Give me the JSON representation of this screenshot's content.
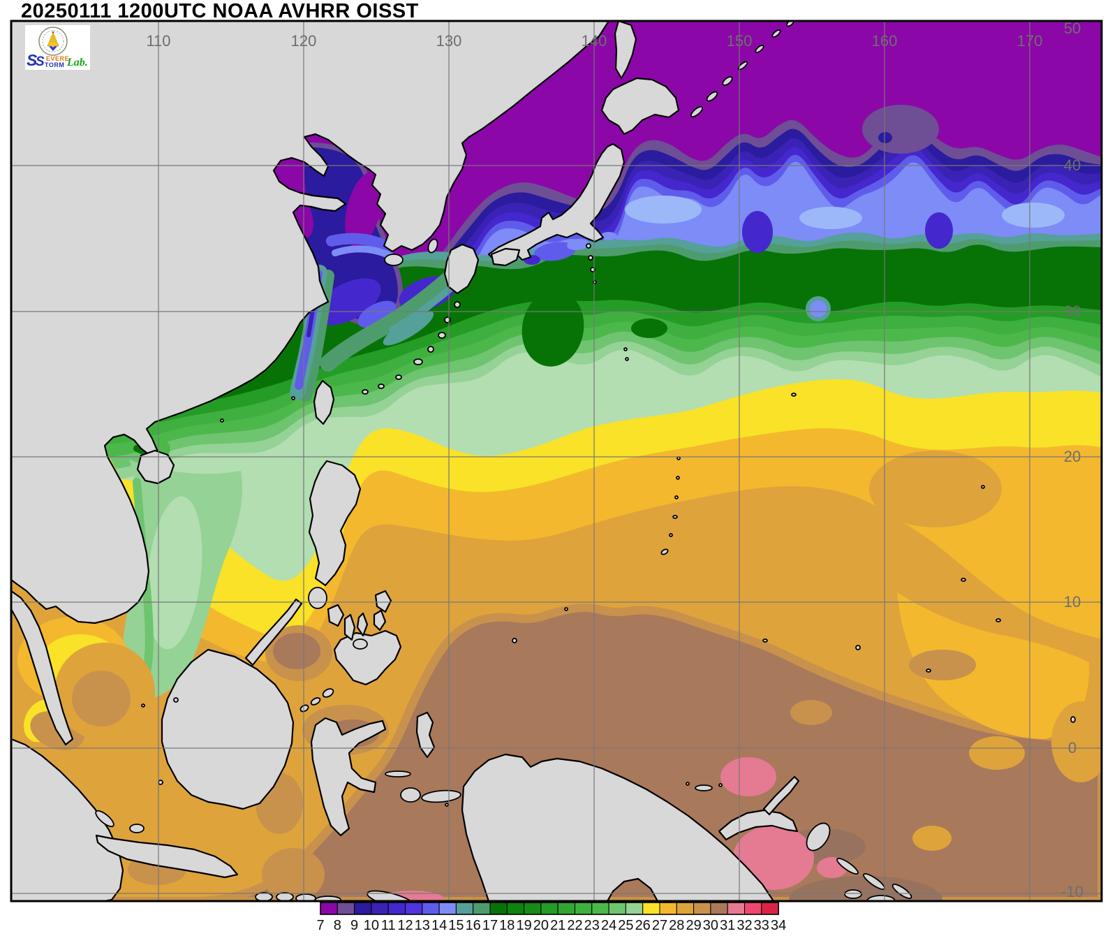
{
  "title": "20250111 1200UTC NOAA AVHRR OISST",
  "logo": {
    "s1": "S",
    "s2": "S",
    "word_top": "EVERE",
    "word_bottom": "TORM",
    "lab": "Lab."
  },
  "map": {
    "lon_ticks": [
      "110",
      "120",
      "130",
      "140",
      "150",
      "160",
      "170"
    ],
    "lat_ticks": [
      "50",
      "40",
      "30",
      "20",
      "10",
      "0",
      "-10"
    ]
  },
  "colorbar": {
    "tick_labels": [
      "7",
      "8",
      "9",
      "10",
      "11",
      "12",
      "13",
      "14",
      "15",
      "16",
      "17",
      "18",
      "19",
      "20",
      "21",
      "22",
      "23",
      "24",
      "25",
      "26",
      "27",
      "28",
      "29",
      "30",
      "31",
      "32",
      "33",
      "34"
    ],
    "cell_colors": [
      "#8B07A8",
      "#6E4E94",
      "#2B1B9E",
      "#3A22B5",
      "#4527CE",
      "#5133DF",
      "#5F5CEC",
      "#7D8CF6",
      "#55A099",
      "#4E9C6E",
      "#077307",
      "#0E830E",
      "#178A17",
      "#259C25",
      "#32A632",
      "#3FAF3F",
      "#4CB84C",
      "#6FC46F",
      "#95D295",
      "#F9E227",
      "#F4B82E",
      "#DFA33C",
      "#C8924C",
      "#A9795B",
      "#E57A93",
      "#EF476F",
      "#D92448"
    ]
  },
  "colors": {
    "land": "#D8D8D8",
    "coastline": "#000000",
    "grid_line": "#777777",
    "tick_label": "#6E6E6E",
    "map_frame": "#000000",
    "page_background": "#FFFFFF",
    "title_text": "#000000",
    "extra_light_blue": "#9CB8F9",
    "extra_pale_green": "#B2DEB2",
    "extra_dark_brown": "#97735F"
  }
}
